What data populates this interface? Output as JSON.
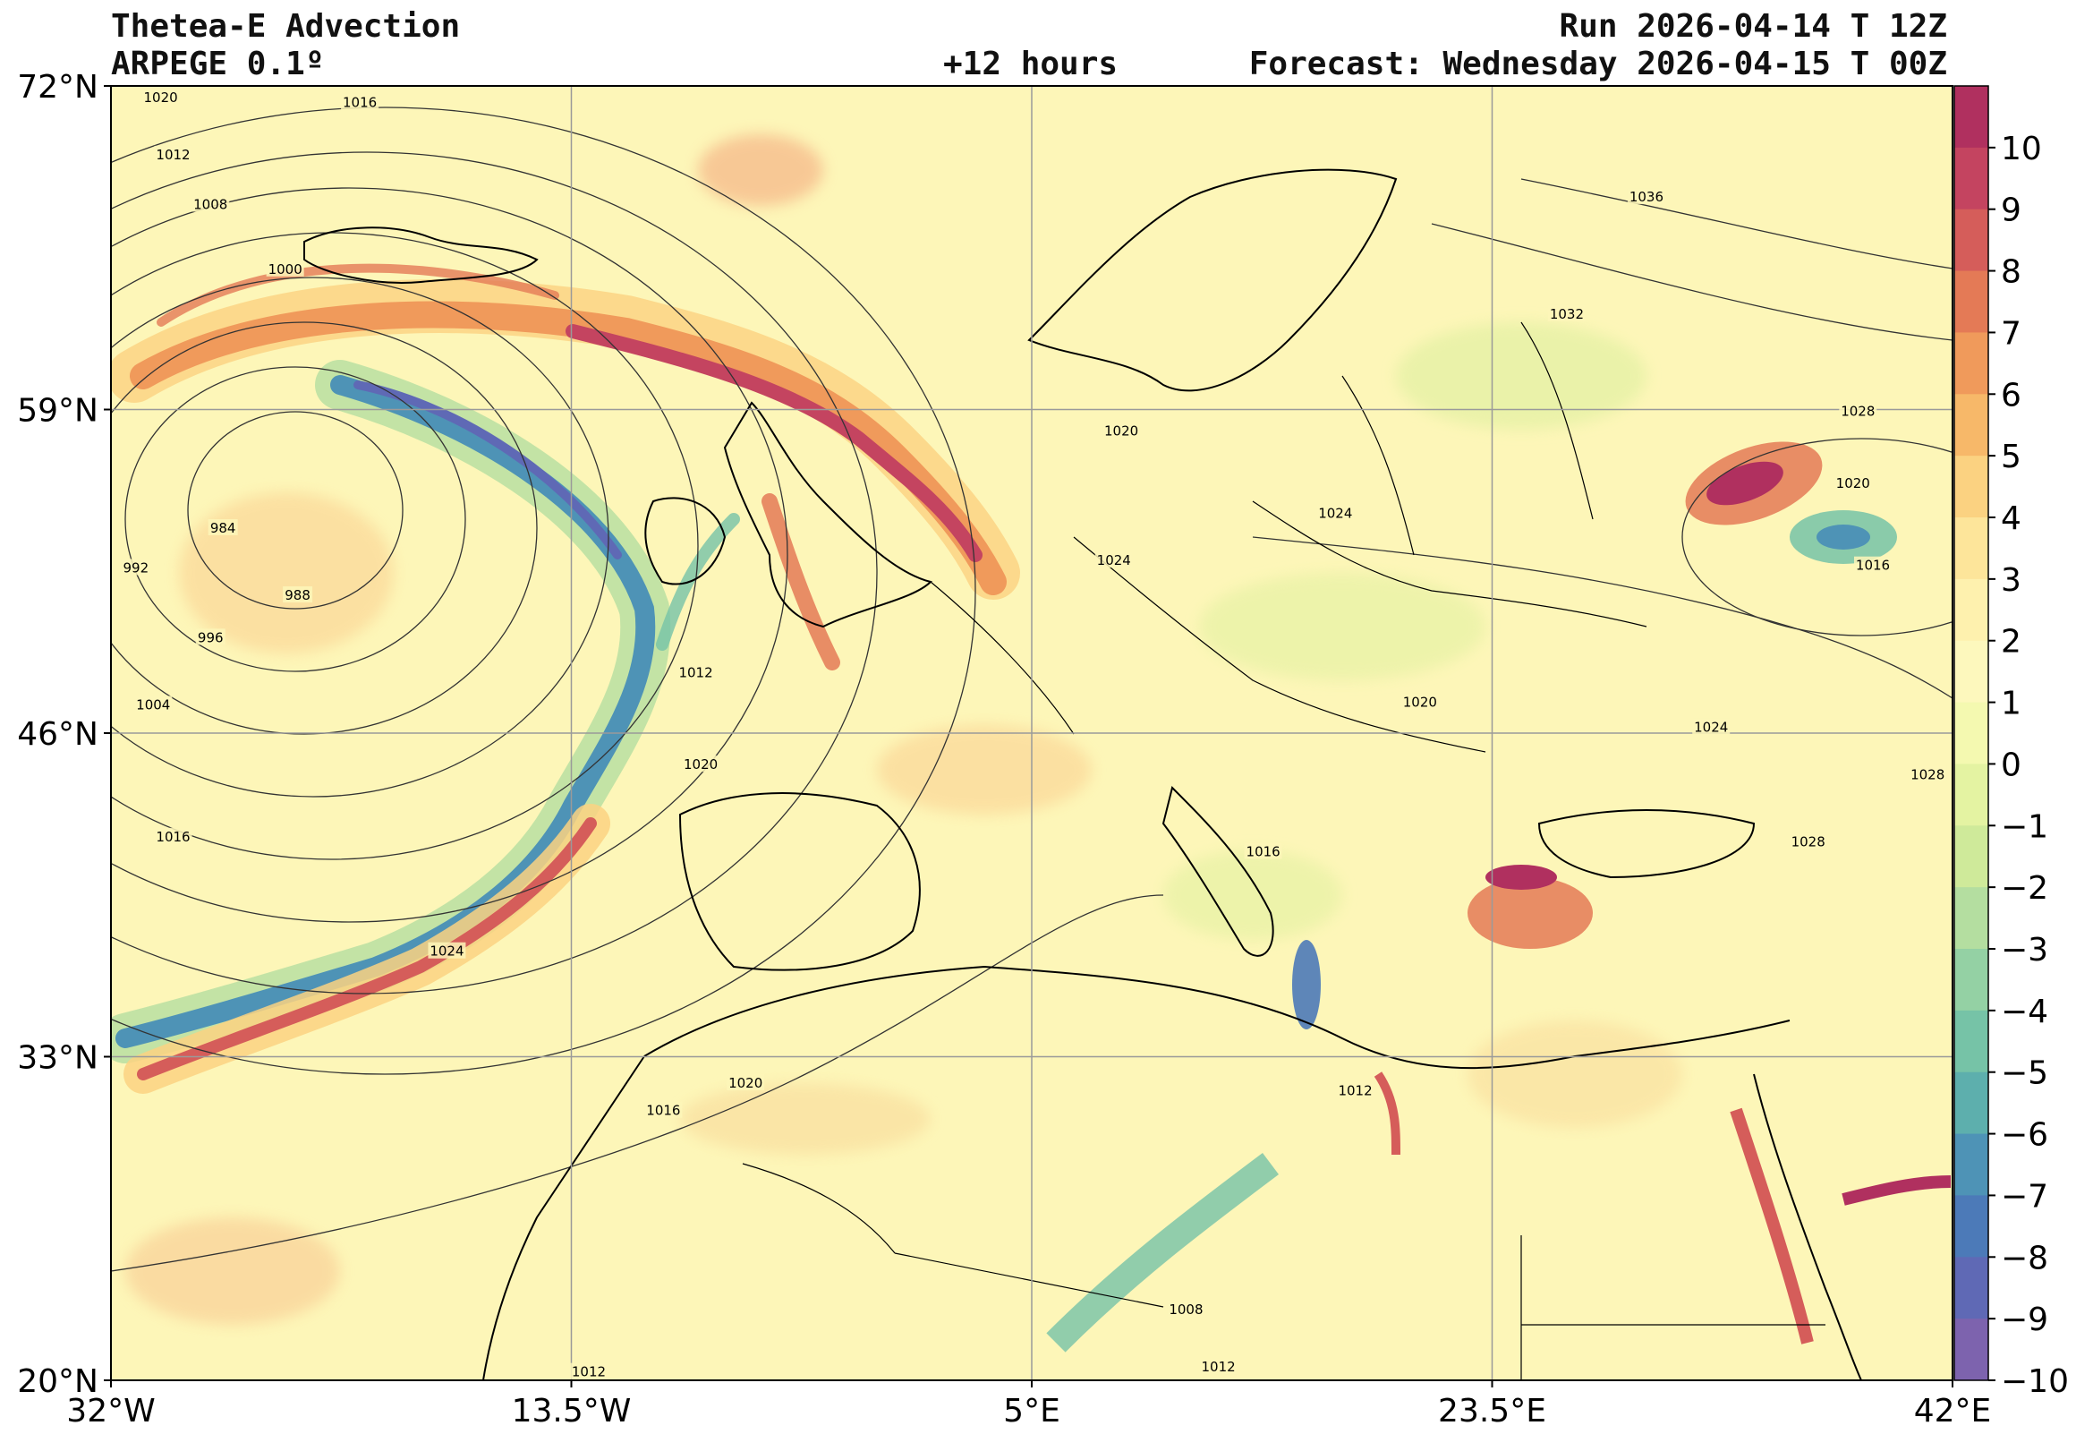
{
  "header": {
    "title": "Thetea-E Advection",
    "model": "ARPEGE 0.1º",
    "lead": "+12 hours",
    "run": "Run 2026-04-14 T 12Z",
    "forecast": "Forecast: Wednesday 2026-04-15 T 00Z"
  },
  "map": {
    "lon_range": [
      -32,
      42
    ],
    "lat_range": [
      20,
      72
    ],
    "lon_ticks": [
      {
        "value": -32,
        "label": "32°W"
      },
      {
        "value": -13.5,
        "label": "13.5°W"
      },
      {
        "value": 5,
        "label": "5°E"
      },
      {
        "value": 23.5,
        "label": "23.5°E"
      },
      {
        "value": 42,
        "label": "42°E"
      }
    ],
    "lat_ticks": [
      {
        "value": 72,
        "label": "72°N"
      },
      {
        "value": 59,
        "label": "59°N"
      },
      {
        "value": 46,
        "label": "46°N"
      },
      {
        "value": 33,
        "label": "33°N"
      },
      {
        "value": 20,
        "label": "20°N"
      }
    ],
    "grid": true,
    "background_color": "#fdf6b8",
    "isobar_labels": [
      {
        "text": "1020",
        "lon": -30,
        "lat": 71.5
      },
      {
        "text": "1016",
        "lon": -22,
        "lat": 71.3
      },
      {
        "text": "1012",
        "lon": -29.5,
        "lat": 69.2
      },
      {
        "text": "1008",
        "lon": -28,
        "lat": 67.2
      },
      {
        "text": "1000",
        "lon": -25,
        "lat": 64.6
      },
      {
        "text": "984",
        "lon": -27.5,
        "lat": 54.2
      },
      {
        "text": "992",
        "lon": -31,
        "lat": 52.6
      },
      {
        "text": "988",
        "lon": -24.5,
        "lat": 51.5
      },
      {
        "text": "996",
        "lon": -28,
        "lat": 49.8
      },
      {
        "text": "1004",
        "lon": -30.3,
        "lat": 47.1
      },
      {
        "text": "1012",
        "lon": -8.5,
        "lat": 48.4
      },
      {
        "text": "1020",
        "lon": -8.3,
        "lat": 44.7
      },
      {
        "text": "1016",
        "lon": -29.5,
        "lat": 41.8
      },
      {
        "text": "1024",
        "lon": -18.5,
        "lat": 37.2
      },
      {
        "text": "1016",
        "lon": -9.8,
        "lat": 30.8
      },
      {
        "text": "1020",
        "lon": -6.5,
        "lat": 31.9
      },
      {
        "text": "1012",
        "lon": -12.8,
        "lat": 20.3
      },
      {
        "text": "1020",
        "lon": 8.6,
        "lat": 58.1
      },
      {
        "text": "1024",
        "lon": 8.3,
        "lat": 52.9
      },
      {
        "text": "1036",
        "lon": 29.7,
        "lat": 67.5
      },
      {
        "text": "1032",
        "lon": 26.5,
        "lat": 62.8
      },
      {
        "text": "1028",
        "lon": 38.2,
        "lat": 58.9
      },
      {
        "text": "1024",
        "lon": 17.2,
        "lat": 54.8
      },
      {
        "text": "1020",
        "lon": 38,
        "lat": 56
      },
      {
        "text": "1016",
        "lon": 38.8,
        "lat": 52.7
      },
      {
        "text": "1020",
        "lon": 20.6,
        "lat": 47.2
      },
      {
        "text": "1024",
        "lon": 32.3,
        "lat": 46.2
      },
      {
        "text": "1028",
        "lon": 41,
        "lat": 44.3
      },
      {
        "text": "1028",
        "lon": 36.2,
        "lat": 41.6
      },
      {
        "text": "1016",
        "lon": 14.3,
        "lat": 41.2
      },
      {
        "text": "1012",
        "lon": 18,
        "lat": 31.6
      },
      {
        "text": "1008",
        "lon": 11.2,
        "lat": 22.8
      },
      {
        "text": "1012",
        "lon": 12.5,
        "lat": 20.5
      }
    ]
  },
  "colorbar": {
    "ticks": [
      "10",
      "9",
      "8",
      "7",
      "6",
      "5",
      "4",
      "3",
      "2",
      "1",
      "0",
      "−1",
      "−2",
      "−3",
      "−4",
      "−5",
      "−6",
      "−7",
      "−8",
      "−9",
      "−10"
    ],
    "colors": [
      "#b0305f",
      "#c44460",
      "#d55d5a",
      "#e47a56",
      "#f09a5b",
      "#f7b869",
      "#fbd281",
      "#fde59a",
      "#fef1ae",
      "#fdf8bd",
      "#f4f9b0",
      "#e4f3a2",
      "#cfea9a",
      "#b4dea0",
      "#94d1a4",
      "#76c3a7",
      "#5dafad",
      "#4e93b6",
      "#4c7ab8",
      "#5f69b5",
      "#7d63ae"
    ]
  }
}
